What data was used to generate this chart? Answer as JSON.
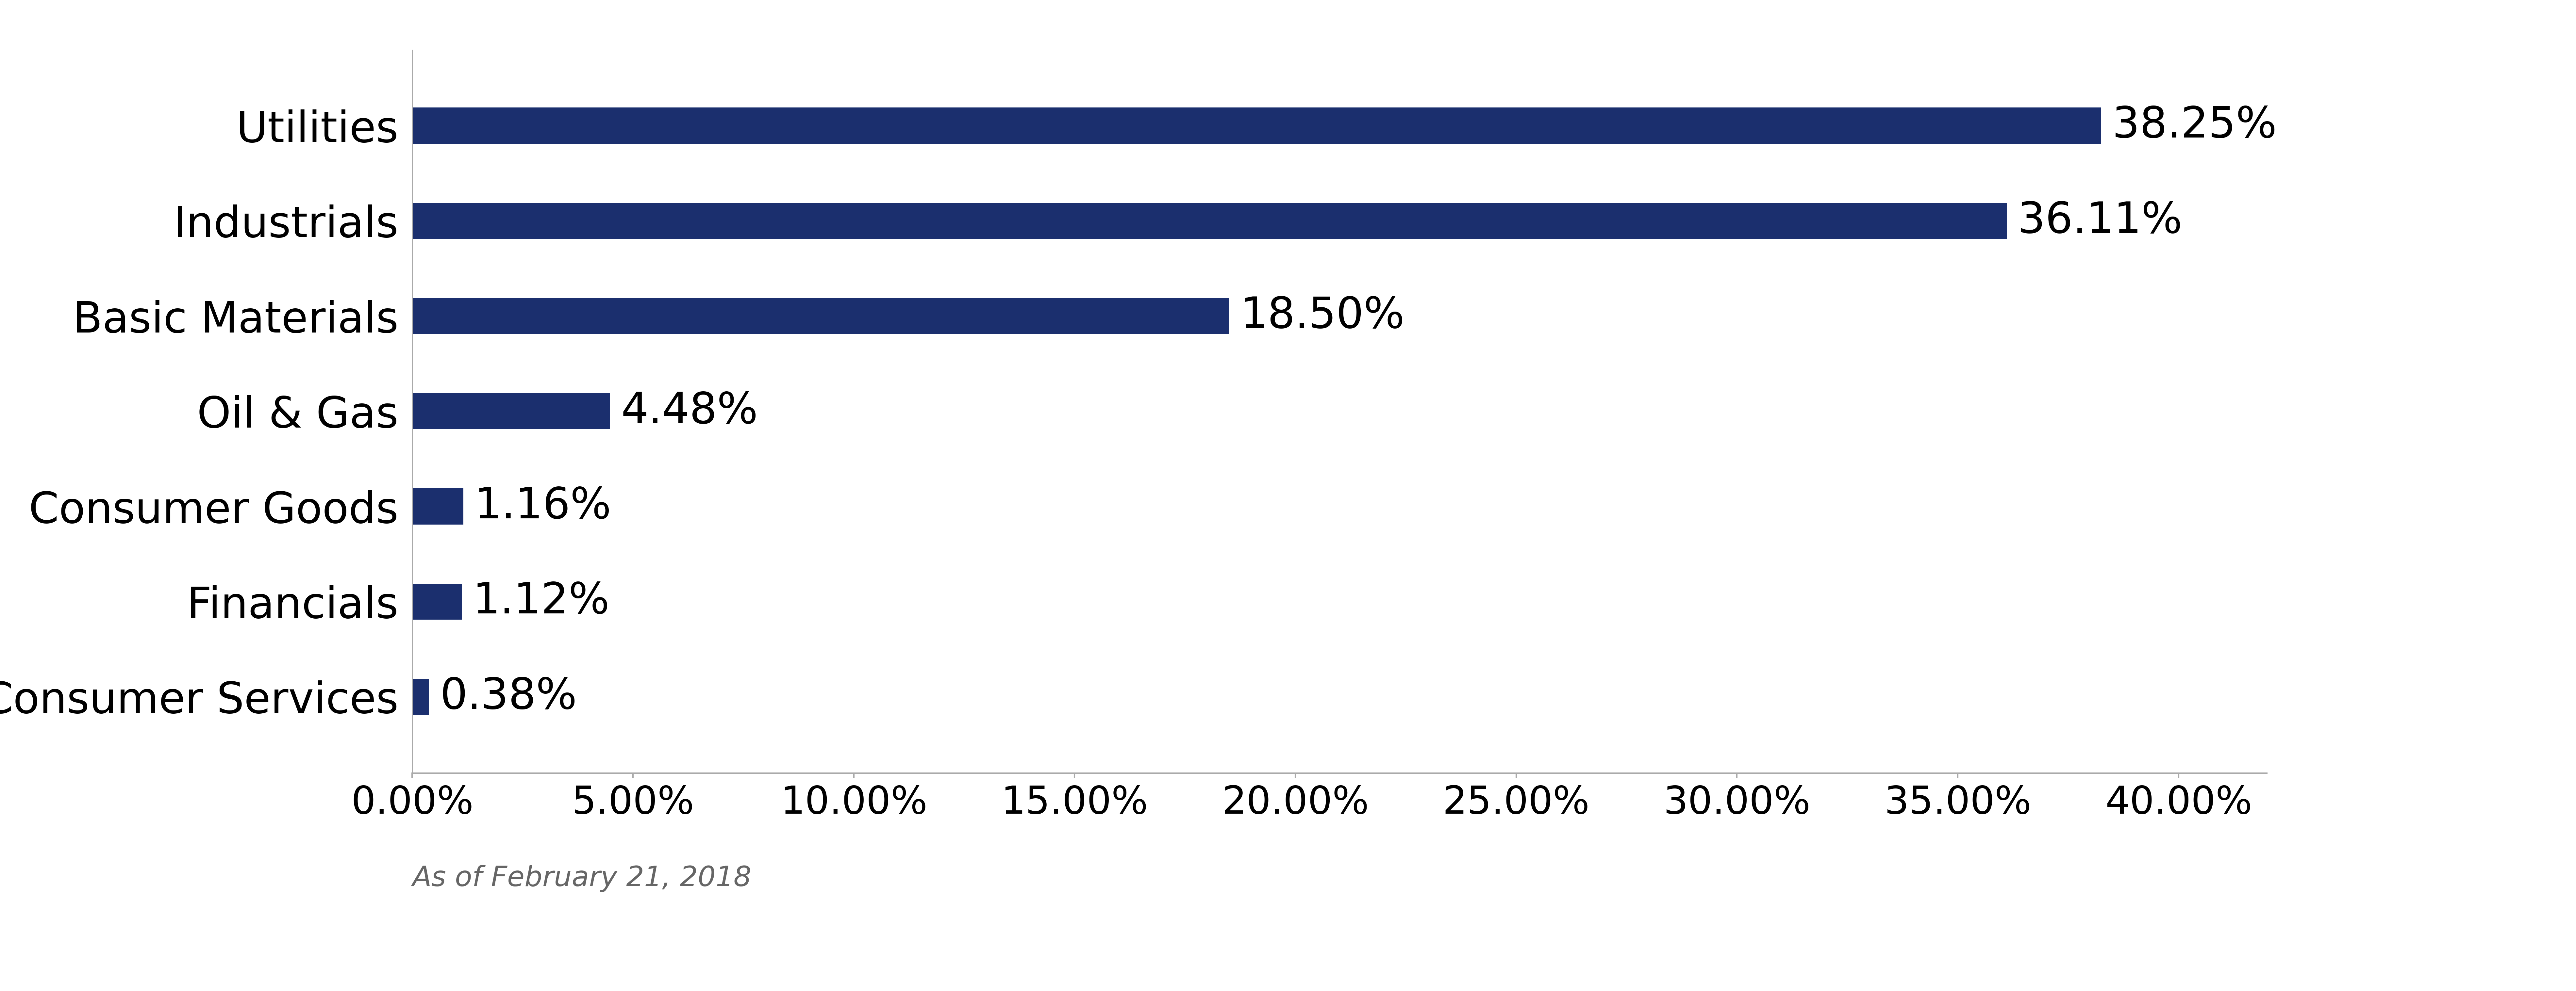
{
  "categories": [
    "Consumer Services",
    "Financials",
    "Consumer Goods",
    "Oil & Gas",
    "Basic Materials",
    "Industrials",
    "Utilities"
  ],
  "values": [
    0.38,
    1.12,
    1.16,
    4.48,
    18.5,
    36.11,
    38.25
  ],
  "labels": [
    "0.38%",
    "1.12%",
    "1.16%",
    "4.48%",
    "18.50%",
    "36.11%",
    "38.25%"
  ],
  "bar_color": "#1b2f6e",
  "background_color": "#ffffff",
  "xlim": [
    0,
    40
  ],
  "xticks": [
    0,
    5,
    10,
    15,
    20,
    25,
    30,
    35,
    40
  ],
  "xtick_labels": [
    "0.00%",
    "5.00%",
    "10.00%",
    "15.00%",
    "20.00%",
    "25.00%",
    "30.00%",
    "35.00%",
    "40.00%"
  ],
  "footnote": "As of February 21, 2018",
  "label_fontsize": 95,
  "tick_fontsize": 85,
  "footnote_fontsize": 62,
  "bar_height": 0.38
}
